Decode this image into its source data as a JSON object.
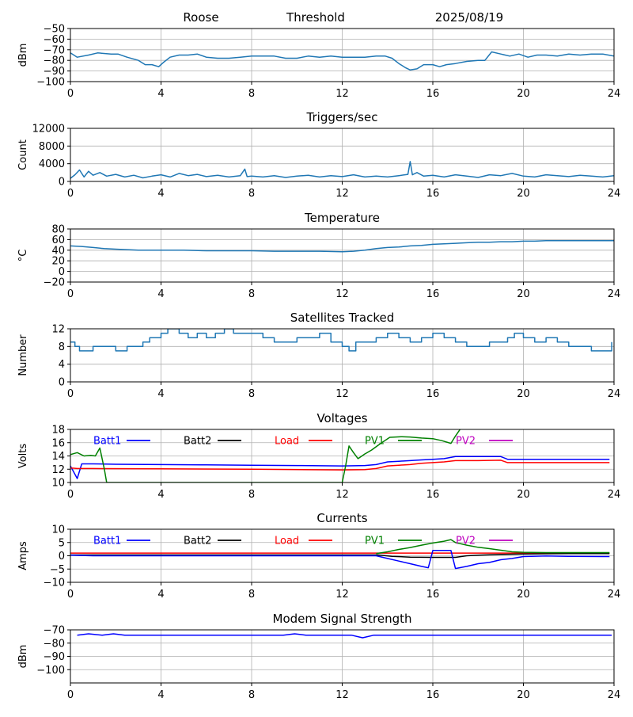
{
  "header": {
    "site": "Roose",
    "type": "Threshold",
    "date": "2025/08/19"
  },
  "colors": {
    "default_line": "#1f77b4",
    "grid": "#b0b0b0"
  },
  "chart_data": [
    {
      "id": "threshold",
      "type": "line",
      "title": "",
      "ylabel": "dBm",
      "xlim": [
        0,
        24
      ],
      "ylim": [
        -100,
        -50
      ],
      "xticks": [
        0,
        4,
        8,
        12,
        16,
        20,
        24
      ],
      "yticks": [
        -50,
        -60,
        -70,
        -80,
        -90,
        -100
      ],
      "ytick_labels": [
        "−50",
        "−60",
        "−70",
        "−80",
        "−90",
        "−100"
      ],
      "grid": true,
      "series": [
        {
          "color": "#1f77b4",
          "x": [
            0,
            0.3,
            0.8,
            1.2,
            1.8,
            2.1,
            2.5,
            3.0,
            3.3,
            3.6,
            3.9,
            4.1,
            4.4,
            4.8,
            5.2,
            5.6,
            6.0,
            6.5,
            7.0,
            7.5,
            8.0,
            8.5,
            9.0,
            9.5,
            10.0,
            10.5,
            11.0,
            11.5,
            12.0,
            12.5,
            13.0,
            13.5,
            13.9,
            14.2,
            14.5,
            14.8,
            15.0,
            15.3,
            15.6,
            16.0,
            16.3,
            16.6,
            17.0,
            17.5,
            18.0,
            18.3,
            18.6,
            19.0,
            19.4,
            19.8,
            20.2,
            20.6,
            21.0,
            21.5,
            22.0,
            22.5,
            23.0,
            23.5,
            24.0
          ],
          "y": [
            -73,
            -77,
            -75,
            -73,
            -74,
            -74,
            -77,
            -80,
            -84,
            -84,
            -86,
            -82,
            -77,
            -75,
            -75,
            -74,
            -77,
            -78,
            -78,
            -77,
            -76,
            -76,
            -76,
            -78,
            -78,
            -76,
            -77,
            -76,
            -77,
            -77,
            -77,
            -76,
            -76,
            -78,
            -83,
            -87,
            -89,
            -88,
            -84,
            -84,
            -86,
            -84,
            -83,
            -81,
            -80,
            -80,
            -72,
            -74,
            -76,
            -74,
            -77,
            -75,
            -75,
            -76,
            -74,
            -75,
            -74,
            -74,
            -76
          ]
        }
      ]
    },
    {
      "id": "triggers",
      "type": "line",
      "title": "Triggers/sec",
      "ylabel": "Count",
      "xlim": [
        0,
        24
      ],
      "ylim": [
        0,
        12000
      ],
      "xticks": [
        0,
        4,
        8,
        12,
        16,
        20,
        24
      ],
      "yticks": [
        0,
        4000,
        8000,
        12000
      ],
      "grid": true,
      "series": [
        {
          "color": "#1f77b4",
          "x": [
            0,
            0.2,
            0.4,
            0.6,
            0.8,
            1.0,
            1.3,
            1.6,
            2.0,
            2.4,
            2.8,
            3.2,
            3.6,
            4.0,
            4.4,
            4.8,
            5.2,
            5.6,
            6.0,
            6.5,
            7.0,
            7.5,
            7.7,
            7.8,
            8.0,
            8.5,
            9.0,
            9.5,
            10.0,
            10.5,
            11.0,
            11.5,
            12.0,
            12.5,
            13.0,
            13.5,
            14.0,
            14.5,
            14.9,
            15.0,
            15.1,
            15.3,
            15.6,
            16.0,
            16.5,
            17.0,
            17.5,
            18.0,
            18.5,
            19.0,
            19.5,
            20.0,
            20.5,
            21.0,
            21.5,
            22.0,
            22.5,
            23.0,
            23.5,
            24.0
          ],
          "y": [
            700,
            1500,
            2600,
            1000,
            2300,
            1400,
            2000,
            1200,
            1600,
            1000,
            1400,
            800,
            1200,
            1500,
            1000,
            1800,
            1300,
            1600,
            1100,
            1400,
            1000,
            1300,
            2800,
            1100,
            1200,
            1000,
            1300,
            900,
            1200,
            1400,
            1000,
            1300,
            1100,
            1500,
            1000,
            1200,
            1000,
            1300,
            1600,
            4500,
            1500,
            2000,
            1200,
            1400,
            1000,
            1500,
            1200,
            900,
            1500,
            1300,
            1800,
            1200,
            1000,
            1500,
            1300,
            1100,
            1400,
            1200,
            1000,
            1300
          ]
        }
      ]
    },
    {
      "id": "temperature",
      "type": "line",
      "title": "Temperature",
      "ylabel": "°C",
      "xlim": [
        0,
        24
      ],
      "ylim": [
        -20,
        80
      ],
      "xticks": [
        0,
        4,
        8,
        12,
        16,
        20,
        24
      ],
      "yticks": [
        -20,
        0,
        20,
        40,
        60,
        80
      ],
      "ytick_labels": [
        "−20",
        "0",
        "20",
        "40",
        "60",
        "80"
      ],
      "grid": true,
      "series": [
        {
          "color": "#1f77b4",
          "x": [
            0,
            0.5,
            1.0,
            1.5,
            2.0,
            2.5,
            3.0,
            4.0,
            5.0,
            6.0,
            7.0,
            8.0,
            9.0,
            10.0,
            11.0,
            12.0,
            12.5,
            13.0,
            13.5,
            14.0,
            14.5,
            15.0,
            15.5,
            16.0,
            16.5,
            17.0,
            17.5,
            18.0,
            18.5,
            19.0,
            19.5,
            20.0,
            20.5,
            21.0,
            22.0,
            23.0,
            24.0
          ],
          "y": [
            48,
            47,
            45,
            43,
            42,
            41,
            40,
            40,
            40,
            39,
            39,
            39,
            38,
            38,
            38,
            37,
            38,
            40,
            43,
            45,
            46,
            48,
            49,
            51,
            52,
            53,
            54,
            55,
            55,
            56,
            56,
            57,
            57,
            58,
            58,
            58,
            58
          ]
        }
      ]
    },
    {
      "id": "satellites",
      "type": "line",
      "title": "Satellites Tracked",
      "ylabel": "Number",
      "xlim": [
        0,
        24
      ],
      "ylim": [
        0,
        12
      ],
      "xticks": [
        0,
        4,
        8,
        12,
        16,
        20,
        24
      ],
      "yticks": [
        0,
        4,
        8,
        12
      ],
      "grid": true,
      "series": [
        {
          "color": "#1f77b4",
          "step": true,
          "x": [
            0,
            0.2,
            0.4,
            1.0,
            1.5,
            2.0,
            2.5,
            3.0,
            3.2,
            3.5,
            3.8,
            4.0,
            4.3,
            4.8,
            5.2,
            5.6,
            6.0,
            6.4,
            6.8,
            7.2,
            7.6,
            8.0,
            8.5,
            9.0,
            9.5,
            10.0,
            10.5,
            11.0,
            11.5,
            12.0,
            12.3,
            12.6,
            13.0,
            13.5,
            14.0,
            14.5,
            15.0,
            15.5,
            16.0,
            16.5,
            17.0,
            17.5,
            18.0,
            18.5,
            19.0,
            19.3,
            19.6,
            20.0,
            20.5,
            21.0,
            21.5,
            22.0,
            22.5,
            23.0,
            23.5,
            23.9
          ],
          "y": [
            9,
            8,
            7,
            8,
            8,
            7,
            8,
            8,
            9,
            10,
            10,
            11,
            12,
            11,
            10,
            11,
            10,
            11,
            12,
            11,
            11,
            11,
            10,
            9,
            9,
            10,
            10,
            11,
            9,
            8,
            7,
            9,
            9,
            10,
            11,
            10,
            9,
            10,
            11,
            10,
            9,
            8,
            8,
            9,
            9,
            10,
            11,
            10,
            9,
            10,
            9,
            8,
            8,
            7,
            7,
            9
          ]
        }
      ]
    },
    {
      "id": "voltages",
      "type": "line",
      "title": "Voltages",
      "ylabel": "Volts",
      "xlim": [
        0,
        24
      ],
      "ylim": [
        10,
        18
      ],
      "xticks": [
        0,
        4,
        8,
        12,
        16,
        20,
        24
      ],
      "yticks": [
        10,
        12,
        14,
        16,
        18
      ],
      "grid": true,
      "legend": [
        {
          "label": "Batt1",
          "color": "#0000ff"
        },
        {
          "label": "Batt2",
          "color": "#000000"
        },
        {
          "label": "Load",
          "color": "#ff0000"
        },
        {
          "label": "PV1",
          "color": "#008000"
        },
        {
          "label": "PV2",
          "color": "#bf00bf"
        }
      ],
      "series": [
        {
          "name": "Batt1",
          "color": "#0000ff",
          "x": [
            0,
            0.3,
            0.5,
            1,
            2,
            4,
            6,
            8,
            10,
            12,
            13,
            13.5,
            14,
            14.5,
            15,
            15.5,
            16,
            16.5,
            17,
            18,
            19,
            19.3,
            20,
            22,
            23.8
          ],
          "y": [
            12.5,
            10.6,
            12.8,
            12.8,
            12.75,
            12.7,
            12.65,
            12.6,
            12.55,
            12.5,
            12.55,
            12.7,
            13.1,
            13.2,
            13.3,
            13.4,
            13.5,
            13.6,
            13.9,
            13.9,
            13.9,
            13.5,
            13.5,
            13.5,
            13.5
          ]
        },
        {
          "name": "Load",
          "color": "#ff0000",
          "x": [
            0,
            0.3,
            1,
            4,
            8,
            12,
            13,
            13.5,
            14,
            14.5,
            15,
            15.5,
            16,
            16.5,
            17,
            18,
            19,
            19.3,
            20,
            22,
            23.8
          ],
          "y": [
            12.2,
            12.1,
            12.1,
            12.05,
            12.0,
            11.9,
            11.95,
            12.1,
            12.5,
            12.6,
            12.7,
            12.9,
            13.0,
            13.1,
            13.3,
            13.3,
            13.35,
            13.0,
            13.0,
            13.0,
            13.0
          ]
        },
        {
          "name": "PV1",
          "color": "#008000",
          "x": [
            0,
            0.3,
            0.6,
            0.9,
            1.1,
            1.3,
            1.5,
            1.6,
            12.0,
            12.15,
            12.3,
            12.5,
            12.7,
            13.0,
            13.3,
            13.7,
            14.1,
            14.6,
            15.0,
            15.5,
            16.0,
            16.4,
            16.8,
            17.0,
            17.2
          ],
          "y": [
            14.2,
            14.5,
            14.0,
            14.1,
            14.0,
            15.2,
            12.0,
            10.0,
            10.0,
            12.5,
            15.5,
            14.5,
            13.6,
            14.3,
            14.9,
            15.9,
            16.8,
            16.9,
            16.85,
            16.7,
            16.6,
            16.3,
            15.9,
            17.0,
            18.0
          ]
        }
      ]
    },
    {
      "id": "currents",
      "type": "line",
      "title": "Currents",
      "ylabel": "Amps",
      "xlim": [
        0,
        24
      ],
      "ylim": [
        -10,
        10
      ],
      "xticks": [
        0,
        4,
        8,
        12,
        16,
        20,
        24
      ],
      "yticks": [
        -10,
        -5,
        0,
        5,
        10
      ],
      "ytick_labels": [
        "−10",
        "−5",
        "0",
        "5",
        "10"
      ],
      "grid": true,
      "legend": [
        {
          "label": "Batt1",
          "color": "#0000ff"
        },
        {
          "label": "Batt2",
          "color": "#000000"
        },
        {
          "label": "Load",
          "color": "#ff0000"
        },
        {
          "label": "PV1",
          "color": "#008000"
        },
        {
          "label": "PV2",
          "color": "#bf00bf"
        }
      ],
      "series": [
        {
          "name": "Load",
          "color": "#ff0000",
          "x": [
            0,
            4,
            8,
            12,
            13.5,
            16,
            20,
            23.8
          ],
          "y": [
            1.0,
            1.0,
            1.0,
            1.0,
            1.0,
            1.0,
            1.0,
            1.0
          ]
        },
        {
          "name": "Batt2",
          "color": "#000000",
          "x": [
            0,
            4,
            8,
            12,
            13.6,
            14.2,
            15.0,
            16.0,
            17.0,
            17.5,
            18.0,
            19.0,
            20.0,
            22.0,
            23.8
          ],
          "y": [
            0.3,
            0.3,
            0.3,
            0.3,
            0.3,
            -0.2,
            -0.5,
            -0.6,
            -0.6,
            0,
            0.2,
            0.5,
            0.7,
            0.8,
            0.8
          ]
        },
        {
          "name": "Batt1",
          "color": "#0000ff",
          "x": [
            0,
            1,
            4,
            8,
            12,
            13.5,
            14.0,
            14.5,
            15.0,
            15.5,
            15.8,
            16.0,
            16.8,
            17.0,
            17.5,
            18.0,
            18.5,
            19.0,
            19.5,
            20.0,
            21.0,
            22.0,
            23.8
          ],
          "y": [
            0.2,
            0.0,
            0.0,
            0.0,
            0.0,
            0.0,
            -1.0,
            -2.0,
            -3.0,
            -4.0,
            -4.5,
            2.0,
            2.0,
            -4.8,
            -4.0,
            -3.0,
            -2.5,
            -1.5,
            -1.0,
            -0.3,
            -0.1,
            -0.2,
            -0.3
          ]
        },
        {
          "name": "PV1",
          "color": "#008000",
          "x": [
            13.5,
            14.0,
            14.5,
            15.0,
            15.5,
            16.0,
            16.5,
            16.8,
            17.0,
            17.5,
            18.0,
            18.5,
            19.0,
            19.5,
            20.0,
            21.0,
            22.0,
            23.8
          ],
          "y": [
            0.8,
            1.5,
            2.4,
            3.1,
            4.0,
            4.8,
            5.5,
            6.1,
            5.0,
            4.0,
            3.2,
            2.7,
            2.1,
            1.5,
            1.3,
            1.2,
            1.2,
            1.2
          ]
        }
      ]
    },
    {
      "id": "modem",
      "type": "line",
      "title": "Modem Signal Strength",
      "ylabel": "dBm",
      "xlim": [
        0,
        24
      ],
      "ylim": [
        -110,
        -70
      ],
      "xticks": [
        0,
        4,
        8,
        12,
        16,
        20,
        24
      ],
      "yticks": [
        -70,
        -80,
        -90,
        -100
      ],
      "ytick_labels": [
        "−70",
        "−80",
        "−90",
        "−100"
      ],
      "grid": true,
      "series": [
        {
          "color": "#0000ff",
          "x": [
            0.3,
            0.8,
            1.4,
            1.9,
            2.4,
            4,
            6,
            8,
            9.4,
            9.9,
            10.4,
            12,
            12.4,
            12.9,
            13.4,
            16,
            20,
            23.9
          ],
          "y": [
            -74,
            -73,
            -74,
            -73,
            -74,
            -74,
            -74,
            -74,
            -74,
            -73,
            -74,
            -74,
            -74,
            -76,
            -74,
            -74,
            -74,
            -74
          ]
        }
      ]
    }
  ]
}
